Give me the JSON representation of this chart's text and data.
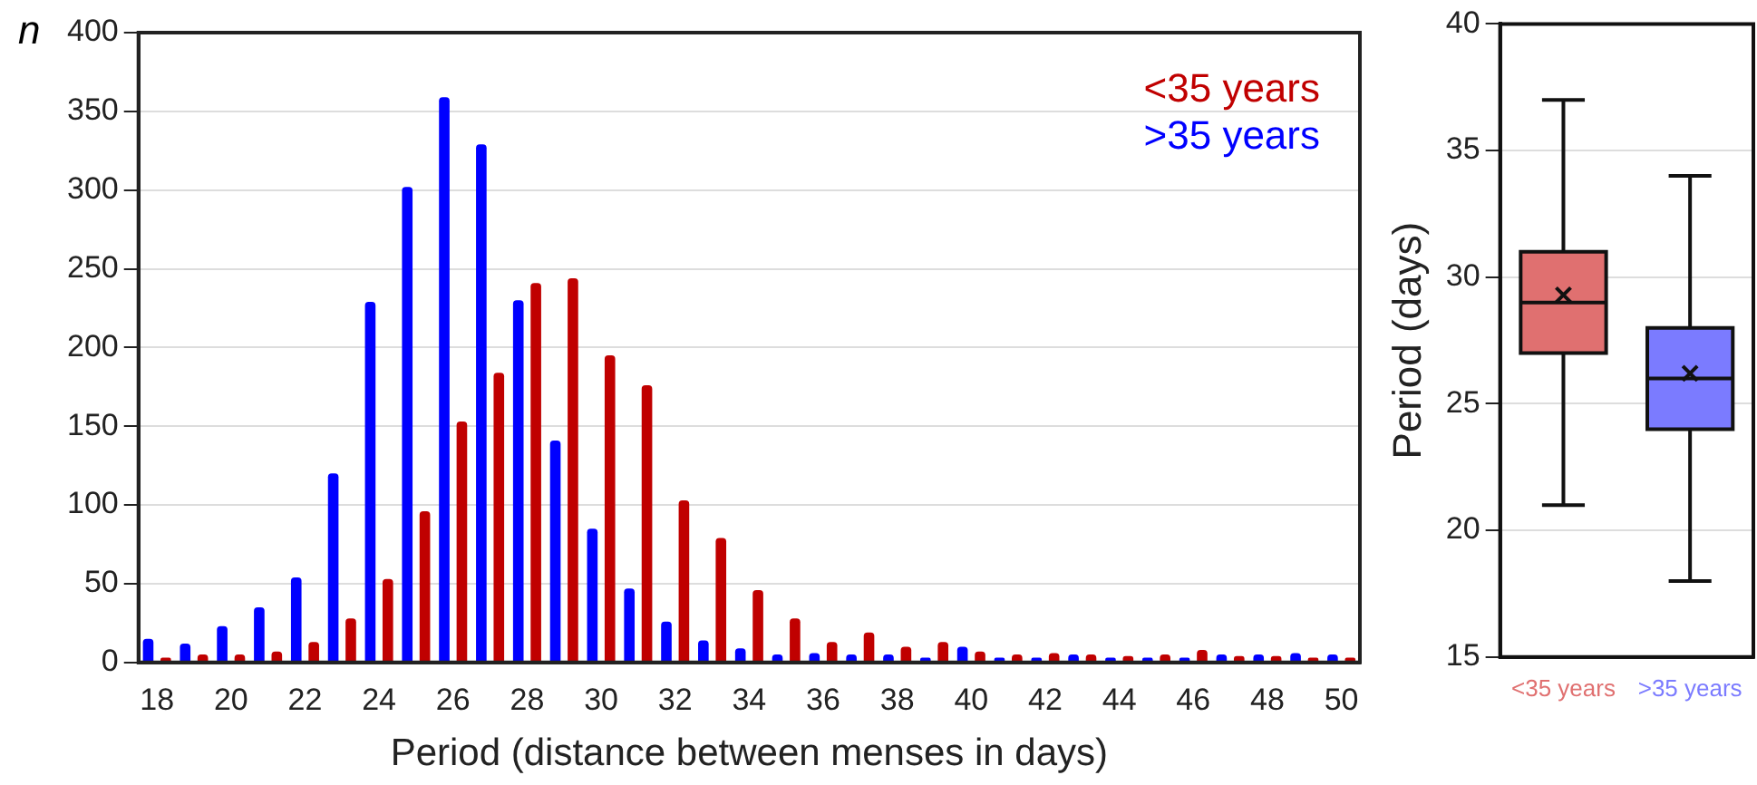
{
  "chart_data": [
    {
      "type": "bar",
      "xlabel": "Period (distance between menses in days)",
      "ylabel": "n",
      "categories": [
        "18",
        null,
        "20",
        null,
        "22",
        null,
        "24",
        null,
        "26",
        null,
        "28",
        null,
        "30",
        null,
        "32",
        null,
        "34",
        null,
        "36",
        null,
        "38",
        null,
        "40",
        null,
        "42",
        null,
        "44",
        null,
        "46",
        null,
        "48",
        null,
        "50"
      ],
      "series": [
        {
          "name": "<35 years",
          "color": "#c00000",
          "values": [
            3,
            5,
            5,
            7,
            13,
            28,
            53,
            96,
            153,
            184,
            241,
            244,
            195,
            176,
            103,
            79,
            46,
            28,
            13,
            19,
            10,
            13,
            7,
            5,
            6,
            5,
            4,
            5,
            8,
            4,
            4,
            3,
            3
          ]
        },
        {
          "name": ">35 years",
          "color": "#0000ff",
          "values": [
            15,
            12,
            23,
            35,
            54,
            120,
            229,
            302,
            359,
            329,
            230,
            141,
            85,
            47,
            26,
            14,
            9,
            5,
            6,
            5,
            5,
            3,
            10,
            3,
            3,
            5,
            3,
            3,
            3,
            5,
            5,
            6,
            5
          ]
        }
      ],
      "ylim": [
        0,
        400
      ],
      "yticks": [
        0,
        50,
        100,
        150,
        200,
        250,
        300,
        350,
        400
      ],
      "grid": "y",
      "legend": "top right"
    },
    {
      "type": "box",
      "ylabel": "Period (days)",
      "categories": [
        "<35 years",
        ">35 years"
      ],
      "colors": [
        "#e07070",
        "#7b7bff"
      ],
      "boxes": [
        {
          "low": 21,
          "q1": 27,
          "median": 29,
          "q3": 31,
          "high": 37,
          "mean": 29.3
        },
        {
          "low": 18,
          "q1": 24,
          "median": 26,
          "q3": 28,
          "high": 34,
          "mean": 26.2
        }
      ],
      "ylim": [
        15,
        40
      ],
      "yticks": [
        15,
        20,
        25,
        30,
        35,
        40
      ],
      "grid": "y"
    }
  ]
}
